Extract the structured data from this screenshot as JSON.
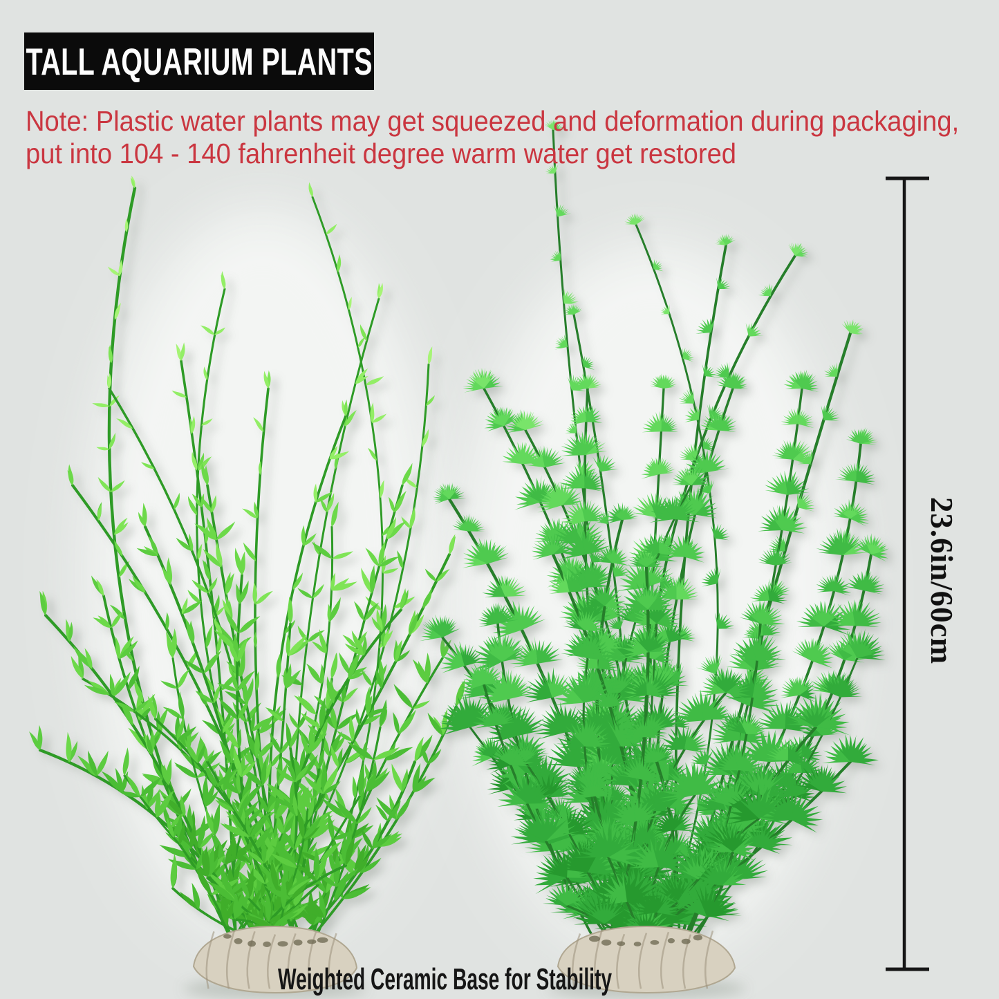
{
  "title_banner": {
    "text": "TALL AQUARIUM PLANTS"
  },
  "note": {
    "lines": [
      "Note: Plastic water plants may get squeezed and deformation during packaging,",
      "put into 104 - 140 fahrenheit degree warm water get restored"
    ]
  },
  "measurement": {
    "label": "23.6in/60cm"
  },
  "caption": {
    "text": "Weighted Ceramic Base for Stability"
  },
  "colors": {
    "background": "#e0e3e1",
    "backdrop_glow": "#f5f7f5",
    "banner_bg": "#0b0b0b",
    "banner_text": "#fdfdfd",
    "note_text": "#ca3640",
    "caption_text": "#161616",
    "measure_line": "#161616",
    "measure_text": "#101010",
    "left_leaf": [
      "#3fae2c",
      "#4cbd35",
      "#5bcc3f",
      "#6cd94a",
      "#7fe457",
      "#93ee66",
      "#a6f475"
    ],
    "left_stem": "#2e9b25",
    "right_leaf": [
      "#27992f",
      "#32ab3a",
      "#3fbb45",
      "#4fca50",
      "#63d95c",
      "#79e46a"
    ],
    "right_stem": "#257e2c",
    "base_fill": "#d8d1c0",
    "base_edge": "#b0a791",
    "base_ridge": "#9c927c",
    "base_hole": "#6b654f",
    "base_shadow": "#bcc2bc"
  }
}
